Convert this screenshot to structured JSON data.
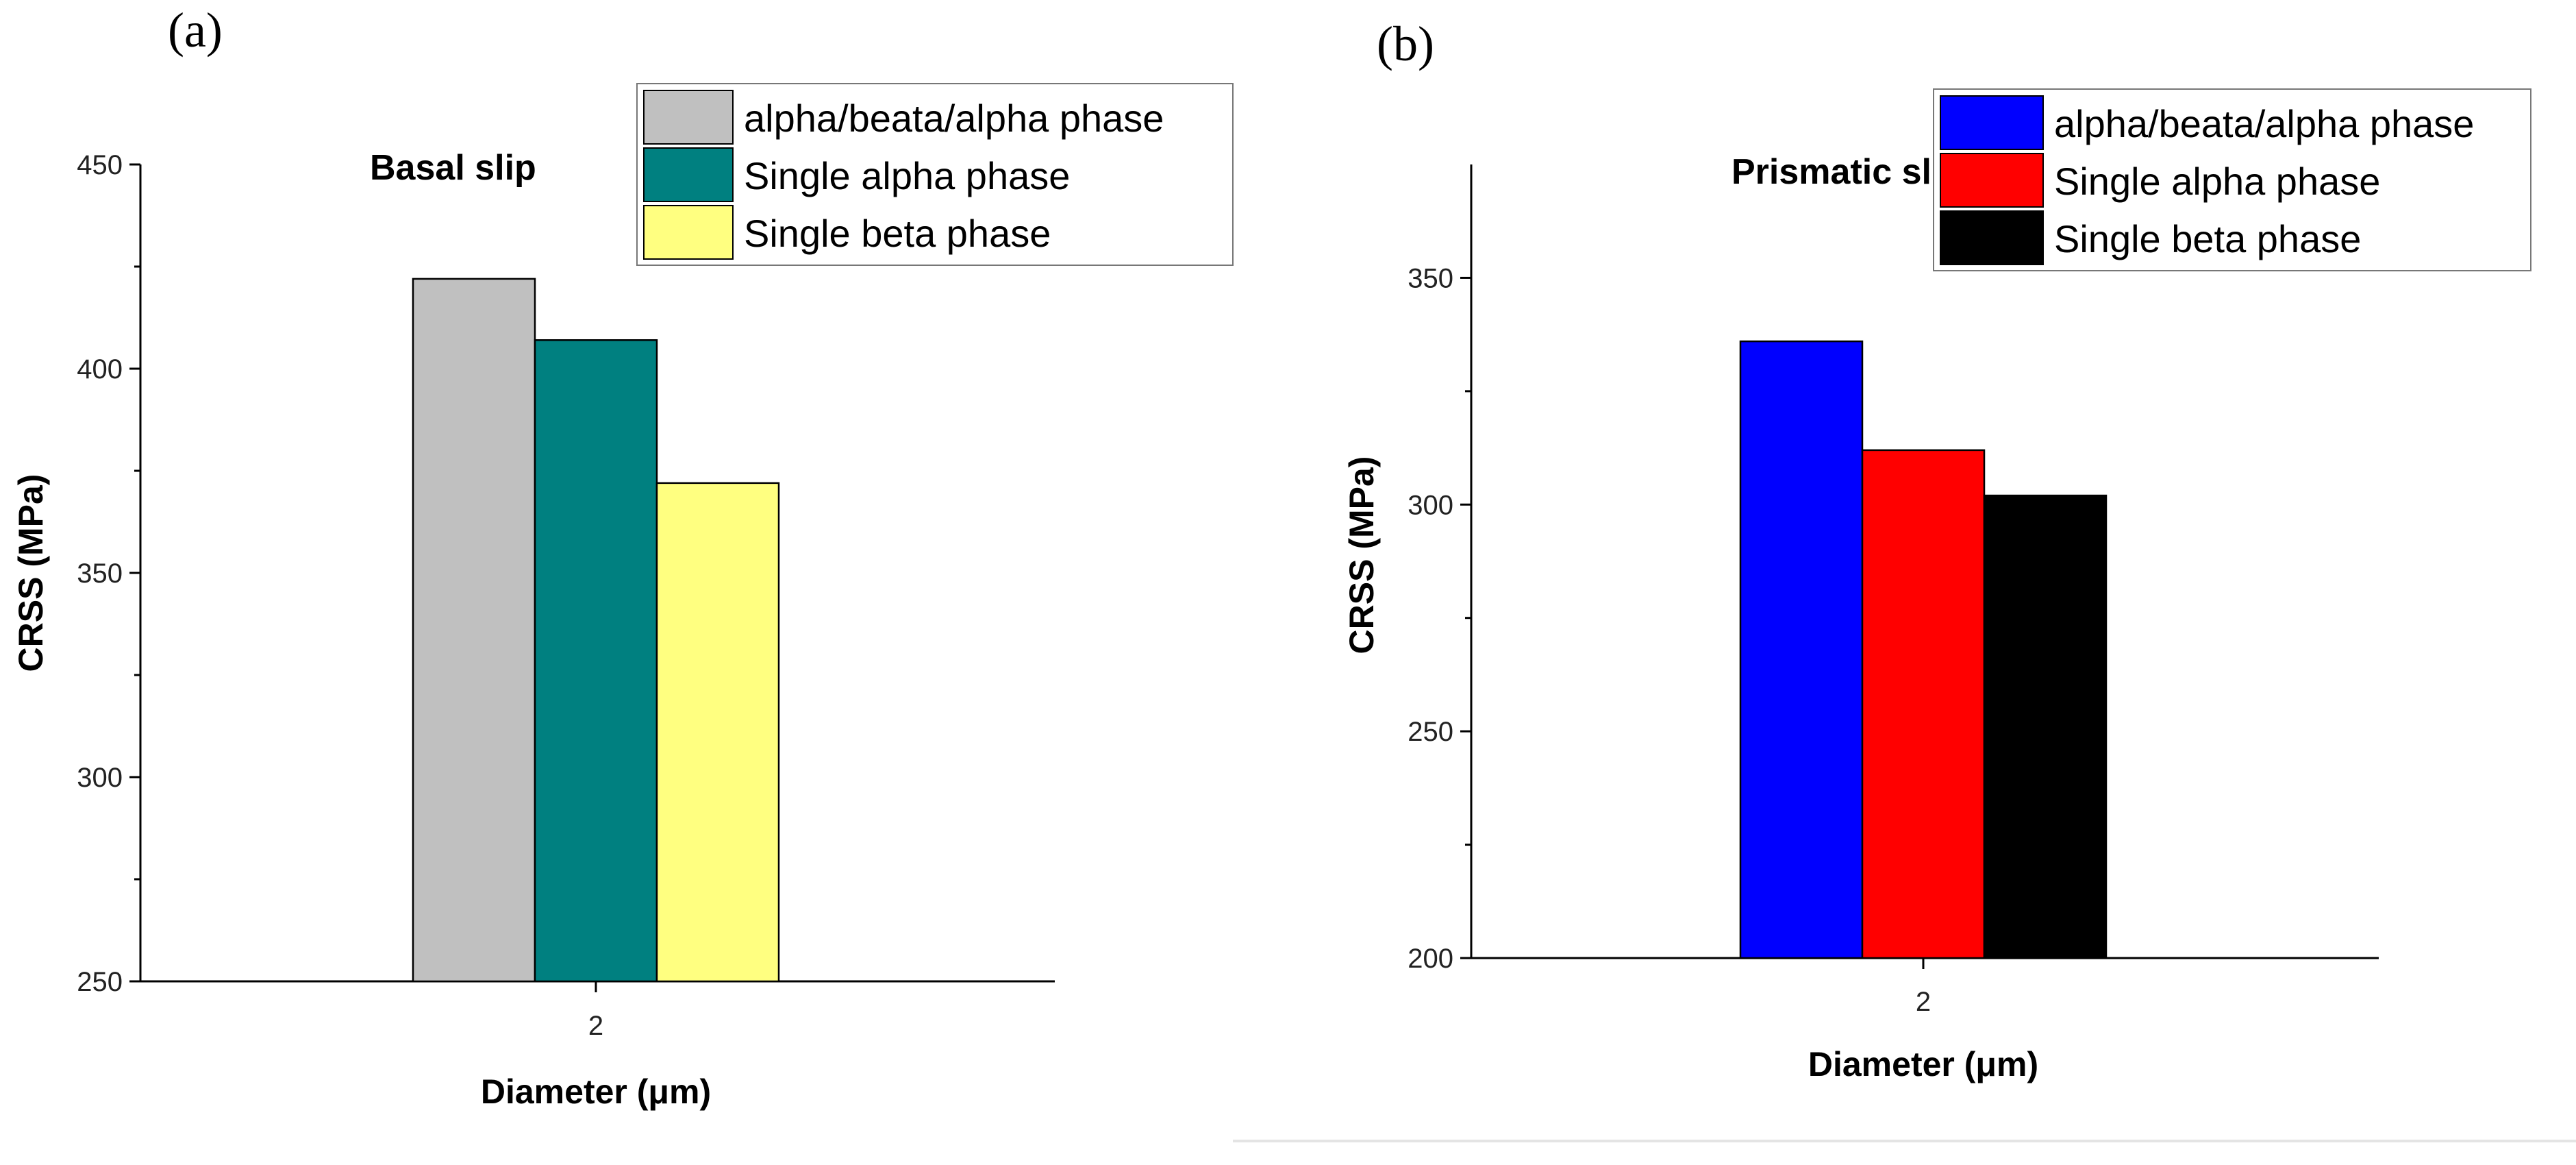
{
  "figure": {
    "panel_a_label": "(a)",
    "panel_b_label": "(b)"
  },
  "chart_data": [
    {
      "type": "bar",
      "panel": "(a)",
      "title": "Basal slip",
      "xlabel": "Diameter (μm)",
      "ylabel": "CRSS (MPa)",
      "categories": [
        "2"
      ],
      "ylim": [
        250,
        450
      ],
      "yticks": [
        250,
        300,
        350,
        400,
        450
      ],
      "legend_position": "top-right",
      "series": [
        {
          "name": "alpha/beata/alpha phase",
          "color": "#c0c0c0",
          "values": [
            422
          ]
        },
        {
          "name": "Single alpha phase",
          "color": "#008080",
          "values": [
            407
          ]
        },
        {
          "name": "Single beta phase",
          "color": "#ffff80",
          "values": [
            372
          ]
        }
      ]
    },
    {
      "type": "bar",
      "panel": "(b)",
      "title": "Prismatic slip",
      "xlabel": "Diameter (μm)",
      "ylabel": "CRSS (MPa)",
      "categories": [
        "2"
      ],
      "ylim": [
        200,
        375
      ],
      "yticks": [
        200,
        250,
        300,
        350
      ],
      "legend_position": "top-right",
      "series": [
        {
          "name": "alpha/beata/alpha phase",
          "color": "#0000ff",
          "values": [
            336
          ]
        },
        {
          "name": "Single alpha phase",
          "color": "#ff0000",
          "values": [
            312
          ]
        },
        {
          "name": "Single beta phase",
          "color": "#000000",
          "values": [
            302
          ]
        }
      ]
    }
  ]
}
